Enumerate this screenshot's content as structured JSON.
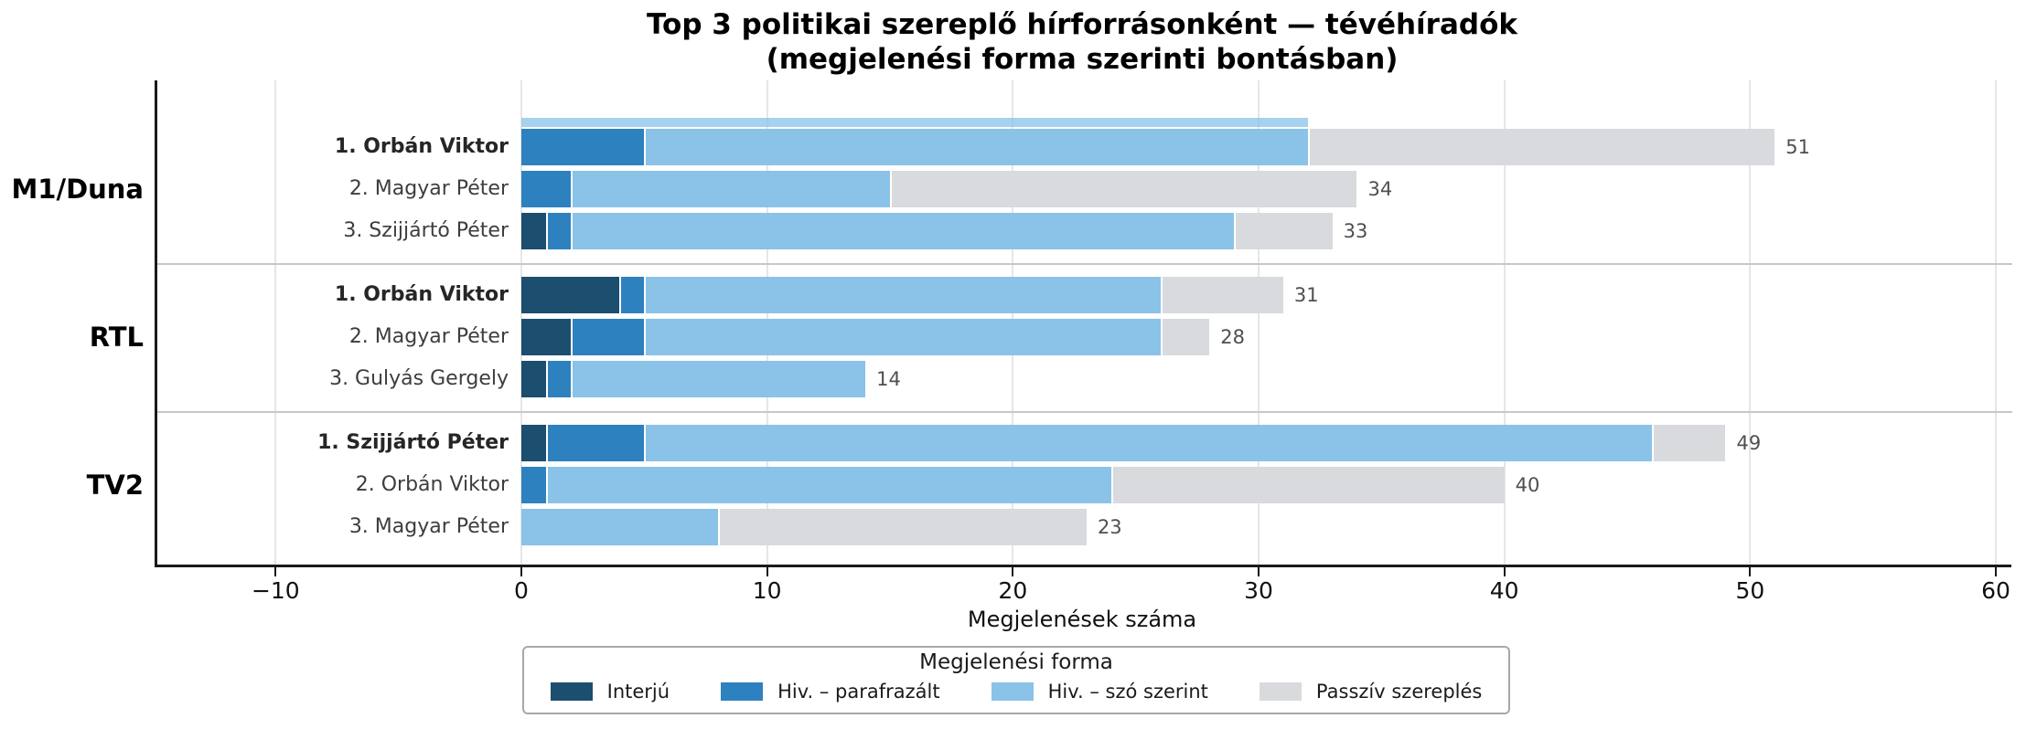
{
  "chart_data": {
    "type": "bar",
    "orientation": "horizontal",
    "stacked": true,
    "title_line1": "Top 3 politikai szereplő hírforrásonként — tévéhíradók",
    "title_line2": "(megjelenési forma szerinti bontásban)",
    "xlabel": "Megjelenések száma",
    "xticks": [
      -10,
      0,
      10,
      20,
      30,
      40,
      50,
      60
    ],
    "xtick_labels": [
      "−10",
      "0",
      "10",
      "20",
      "30",
      "40",
      "50",
      "60"
    ],
    "xlim": [
      -14.9,
      60.5
    ],
    "grid": true,
    "legend": {
      "title": "Megjelenési forma",
      "position": "bottom-center",
      "entries": [
        {
          "label": "Interjú",
          "color": "#1c4e6f"
        },
        {
          "label": "Hiv. – parafrazált",
          "color": "#2e81bf"
        },
        {
          "label": "Hiv. – szó szerint",
          "color": "#8ac2e8"
        },
        {
          "label": "Passzív szereplés",
          "color": "#d8dadd"
        }
      ]
    },
    "segment_keys": [
      "Interjú",
      "Hiv. – parafrazált",
      "Hiv. – szó szerint",
      "Passzív szereplés"
    ],
    "groups": [
      {
        "name": "M1/Duna",
        "bars": [
          {
            "label": "1. Orbán Viktor",
            "rank": 1,
            "segments": [
              0,
              5,
              27,
              19
            ],
            "total": 51
          },
          {
            "label": "2. Magyar Péter",
            "rank": 2,
            "segments": [
              0,
              2,
              13,
              19
            ],
            "total": 34
          },
          {
            "label": "3. Szijjártó Péter",
            "rank": 3,
            "segments": [
              1,
              1,
              27,
              4
            ],
            "total": 33
          }
        ]
      },
      {
        "name": "RTL",
        "bars": [
          {
            "label": "1. Orbán Viktor",
            "rank": 1,
            "segments": [
              4,
              1,
              21,
              5
            ],
            "total": 31
          },
          {
            "label": "2. Magyar Péter",
            "rank": 2,
            "segments": [
              2,
              3,
              21,
              2
            ],
            "total": 28
          },
          {
            "label": "3. Gulyás Gergely",
            "rank": 3,
            "segments": [
              1,
              1,
              12,
              0
            ],
            "total": 14
          }
        ]
      },
      {
        "name": "TV2",
        "bars": [
          {
            "label": "1. Szijjártó Péter",
            "rank": 1,
            "segments": [
              1,
              4,
              41,
              3
            ],
            "total": 49
          },
          {
            "label": "2. Orbán Viktor",
            "rank": 2,
            "segments": [
              0,
              1,
              23,
              16
            ],
            "total": 40
          },
          {
            "label": "3. Magyar Péter",
            "rank": 3,
            "segments": [
              0,
              0,
              8,
              15
            ],
            "total": 23
          }
        ]
      }
    ]
  }
}
